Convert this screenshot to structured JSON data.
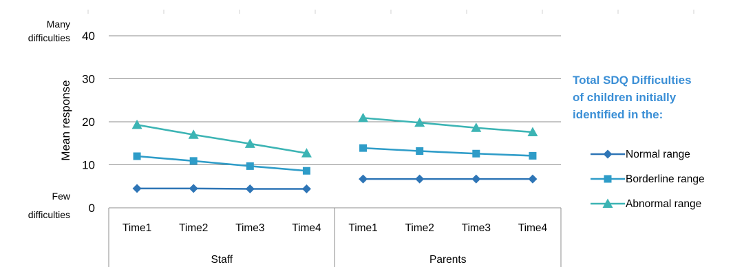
{
  "chart_data": {
    "type": "line",
    "groups": [
      {
        "name": "Staff",
        "categories": [
          "Time1",
          "Time2",
          "Time3",
          "Time4"
        ]
      },
      {
        "name": "Parents",
        "categories": [
          "Time1",
          "Time2",
          "Time3",
          "Time4"
        ]
      }
    ],
    "series": [
      {
        "name": "Normal range",
        "marker": "diamond",
        "color": "#2e75b6",
        "values": [
          4.5,
          4.5,
          4.4,
          4.4,
          6.7,
          6.7,
          6.7,
          6.7
        ]
      },
      {
        "name": "Borderline range",
        "marker": "square",
        "color": "#2e9cc8",
        "values": [
          12.0,
          10.9,
          9.7,
          8.6,
          13.9,
          13.2,
          12.6,
          12.1
        ]
      },
      {
        "name": "Abnormal range",
        "marker": "triangle",
        "color": "#3cb4b4",
        "values": [
          19.3,
          17.0,
          14.9,
          12.7,
          20.9,
          19.8,
          18.6,
          17.6
        ]
      }
    ],
    "ylabel": "Mean response",
    "ylim": [
      0,
      40
    ],
    "yticks": [
      0,
      10,
      20,
      30,
      40
    ],
    "ytick_top_label": [
      "Many",
      "difficulties"
    ],
    "ytick_bottom_label": [
      "Few",
      "difficulties"
    ],
    "grid": true,
    "legend_title": [
      "Total SDQ Difficulties",
      "of children initially",
      "identified in the:"
    ],
    "legend_position": "right"
  }
}
